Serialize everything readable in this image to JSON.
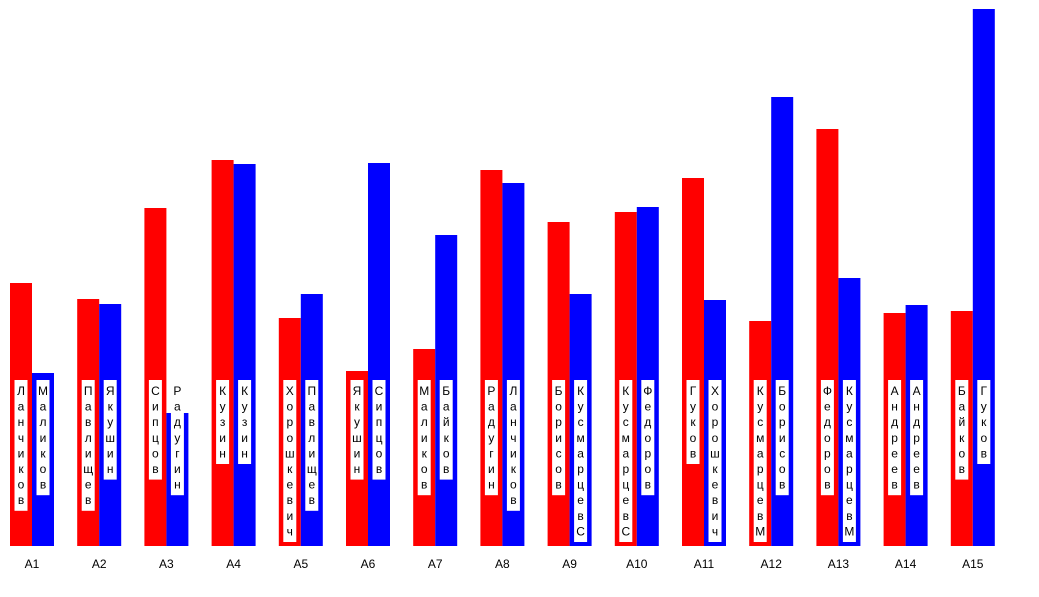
{
  "chart_data": {
    "type": "bar",
    "title": "",
    "xlabel": "",
    "ylabel": "",
    "grid": false,
    "legend": "none",
    "ylim": [
      0,
      537
    ],
    "colors": {
      "series_a": "#ff0000",
      "series_b": "#0000ff",
      "label_bg": "#ffffff"
    },
    "categories": [
      "A1",
      "A2",
      "A3",
      "A4",
      "A5",
      "A6",
      "A7",
      "A8",
      "A9",
      "A10",
      "A11",
      "A12",
      "A13",
      "A14",
      "A15"
    ],
    "series": [
      {
        "values": [
          263,
          247,
          338,
          386,
          228,
          175,
          197,
          376,
          324,
          334,
          368,
          225,
          417,
          233,
          235
        ],
        "labels": [
          "Ланчиков",
          "Павлищев",
          "Сипцов",
          "Кузин",
          "Хорошкевич",
          "Якушин",
          "Маликов",
          "Радугин",
          "Борисов",
          "КусмарцевС",
          "Гуков",
          "КусмарцевМ",
          "Федоров",
          "Андреев",
          "Байков"
        ]
      },
      {
        "values": [
          173,
          242,
          133,
          382,
          252,
          383,
          311,
          363,
          252,
          339,
          246,
          449,
          268,
          241,
          537
        ],
        "labels": [
          "Маликов",
          "Якушин",
          "Радугин",
          "Кузин",
          "Павлищев",
          "Сипцов",
          "Байков",
          "Ланчиков",
          "КусмарцевС",
          "Федоров",
          "Хорошкевич",
          "Борисов",
          "КусмарцевМ",
          "Андреев",
          "Гуков"
        ]
      }
    ]
  }
}
